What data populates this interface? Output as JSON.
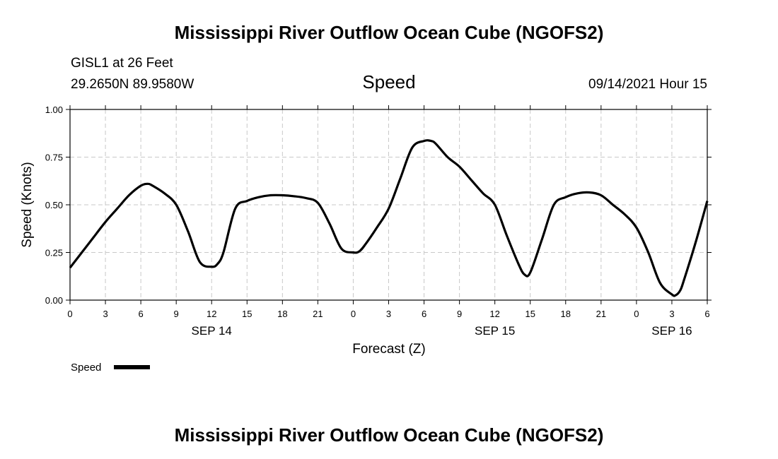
{
  "header": {
    "title": "Mississippi River Outflow Ocean Cube (NGOFS2)",
    "station": "GISL1 at 26 Feet",
    "coords": "29.2650N  89.9580W",
    "variable": "Speed",
    "datetime": "09/14/2021 Hour 15"
  },
  "footer": {
    "title": "Mississippi River Outflow Ocean Cube (NGOFS2)"
  },
  "legend": {
    "label": "Speed"
  },
  "chart_data": {
    "type": "line",
    "title": "Speed",
    "xlabel": "Forecast (Z)",
    "ylabel": "Speed (Knots)",
    "xlim": [
      0,
      54
    ],
    "ylim": [
      0,
      1
    ],
    "grid": true,
    "x_ticks": [
      0,
      3,
      6,
      9,
      12,
      15,
      18,
      21,
      24,
      27,
      30,
      33,
      36,
      39,
      42,
      45,
      48,
      51,
      54
    ],
    "x_tick_labels": [
      "0",
      "3",
      "6",
      "9",
      "12",
      "15",
      "18",
      "21",
      "0",
      "3",
      "6",
      "9",
      "12",
      "15",
      "18",
      "21",
      "0",
      "3",
      "6"
    ],
    "date_labels": [
      {
        "x": 12,
        "label": "SEP 14"
      },
      {
        "x": 36,
        "label": "SEP 15"
      },
      {
        "x": 51,
        "label": "SEP 16"
      }
    ],
    "y_ticks": [
      0,
      0.25,
      0.5,
      0.75,
      1
    ],
    "y_tick_labels": [
      "0.00",
      "0.25",
      "0.50",
      "0.75",
      "1.00"
    ],
    "legend_position": "bottom-left",
    "series": [
      {
        "name": "Speed",
        "color": "#000000",
        "x": [
          0,
          1,
          2,
          3,
          4,
          5,
          6,
          6.6,
          7,
          8,
          9,
          10,
          11,
          12,
          12.5,
          13,
          14,
          15,
          16,
          17,
          18,
          19,
          20,
          21,
          22,
          23,
          24,
          24.5,
          25,
          26,
          27,
          28,
          29,
          30,
          30.6,
          31,
          32,
          33,
          34,
          35,
          36,
          37,
          38,
          38.5,
          39,
          40,
          41,
          42,
          43,
          44,
          45,
          46,
          47,
          48,
          49,
          50,
          51,
          51.3,
          51.7,
          52,
          53,
          54
        ],
        "values": [
          0.17,
          0.25,
          0.33,
          0.41,
          0.48,
          0.55,
          0.6,
          0.61,
          0.6,
          0.56,
          0.5,
          0.36,
          0.2,
          0.175,
          0.19,
          0.25,
          0.48,
          0.52,
          0.54,
          0.55,
          0.55,
          0.545,
          0.535,
          0.51,
          0.4,
          0.27,
          0.25,
          0.255,
          0.29,
          0.38,
          0.48,
          0.64,
          0.8,
          0.835,
          0.835,
          0.82,
          0.75,
          0.7,
          0.63,
          0.56,
          0.5,
          0.34,
          0.19,
          0.135,
          0.145,
          0.32,
          0.5,
          0.54,
          0.56,
          0.565,
          0.55,
          0.5,
          0.45,
          0.38,
          0.25,
          0.09,
          0.03,
          0.025,
          0.05,
          0.1,
          0.3,
          0.52
        ]
      }
    ]
  }
}
